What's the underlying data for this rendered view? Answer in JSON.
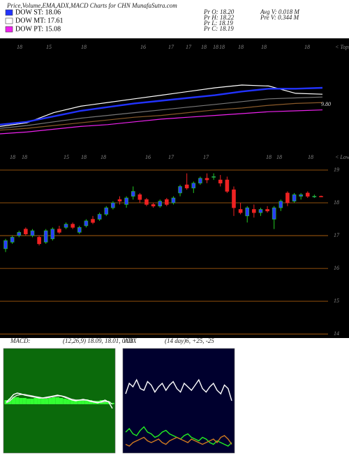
{
  "header": {
    "title": "Price,Volume,EMA,ADX,MACD Charts for CHN  MunafaSutra.com",
    "legend": [
      {
        "label": "DOW ST: 18.06",
        "color": "#2233ff"
      },
      {
        "label": "DOW MT: 17.61",
        "color": "#ffffff"
      },
      {
        "label": "DOW PT: 15.08",
        "color": "#ee22ee"
      }
    ],
    "stats": [
      "Pr  O: 18.20",
      "Pr  H: 18.22",
      "Pr  L: 18.19",
      "Pr  C: 18.19",
      "Avg V: 0.018  M",
      "Pre  V: 0.344  M"
    ]
  },
  "chart_data": [
    {
      "type": "line",
      "top_labels": [
        "18",
        "15",
        "18",
        "16",
        "17",
        "17",
        "18",
        "18",
        "18",
        "18",
        "18",
        "18"
      ],
      "end_label": "< Tops",
      "annotation": "9.80",
      "ylim": [
        0,
        10
      ],
      "series": [
        {
          "name": "magenta",
          "color": "#ee22ee",
          "values": [
            0.0,
            0.2,
            0.5,
            0.8,
            1.0,
            1.3,
            1.6,
            1.8,
            2.0,
            2.2,
            2.4,
            2.5,
            2.6
          ]
        },
        {
          "name": "brown",
          "color": "#8a5a2a",
          "values": [
            0.4,
            0.6,
            0.9,
            1.2,
            1.5,
            1.8,
            2.0,
            2.3,
            2.6,
            2.8,
            3.1,
            3.3,
            3.4
          ]
        },
        {
          "name": "gray",
          "color": "#777777",
          "values": [
            0.6,
            0.9,
            1.3,
            1.7,
            2.0,
            2.3,
            2.6,
            2.9,
            3.2,
            3.5,
            3.8,
            3.9,
            4.0
          ]
        },
        {
          "name": "white",
          "color": "#ffffff",
          "values": [
            0.8,
            1.2,
            2.3,
            3.0,
            3.4,
            3.8,
            4.2,
            4.6,
            5.0,
            5.3,
            5.2,
            4.4,
            4.3
          ]
        },
        {
          "name": "blue",
          "color": "#2233ff",
          "values": [
            1.0,
            1.3,
            1.9,
            2.5,
            2.9,
            3.3,
            3.6,
            3.9,
            4.2,
            4.6,
            4.9,
            4.9,
            5.0
          ]
        }
      ]
    },
    {
      "type": "candlestick",
      "top_labels": [
        "18",
        "18",
        "15",
        "18",
        "18",
        "16",
        "17",
        "17",
        "18",
        "18",
        "18"
      ],
      "end_label": "< Lows",
      "up_color": "#2a3cff",
      "up_edge": "#22cc22",
      "down_color": "#ee2222",
      "grid_color": "#c06a10",
      "grid": true,
      "ylim": [
        13.94,
        19.34
      ],
      "yticks": [
        14,
        15,
        16,
        17,
        18,
        19
      ],
      "open": [
        16.6,
        16.8,
        17.0,
        17.2,
        17.0,
        16.95,
        16.8,
        16.9,
        17.2,
        17.25,
        17.35,
        17.1,
        17.3,
        17.5,
        17.5,
        17.65,
        17.85,
        18.1,
        17.95,
        18.2,
        18.25,
        18.1,
        17.95,
        17.9,
        18.1,
        18.0,
        18.3,
        18.55,
        18.45,
        18.6,
        18.75,
        18.8,
        18.7,
        18.7,
        18.4,
        17.8,
        17.6,
        17.8,
        17.7,
        17.8,
        17.5,
        17.85,
        18.3,
        18.05,
        18.2,
        18.3,
        18.2,
        18.2
      ],
      "high": [
        16.9,
        17.0,
        17.15,
        17.25,
        17.2,
        17.0,
        17.2,
        17.25,
        17.3,
        17.4,
        17.4,
        17.3,
        17.5,
        17.6,
        17.7,
        17.9,
        18.05,
        18.2,
        18.2,
        18.5,
        18.3,
        18.15,
        18.0,
        18.1,
        18.15,
        18.2,
        18.55,
        18.9,
        18.65,
        18.8,
        18.9,
        18.9,
        18.85,
        18.8,
        18.5,
        18.0,
        17.9,
        17.95,
        17.85,
        17.9,
        17.9,
        18.1,
        18.35,
        18.3,
        18.3,
        18.35,
        18.25,
        18.22
      ],
      "low": [
        16.5,
        16.75,
        16.95,
        17.0,
        16.95,
        16.7,
        16.75,
        16.85,
        17.05,
        17.2,
        17.2,
        17.05,
        17.25,
        17.35,
        17.45,
        17.6,
        17.8,
        17.95,
        17.85,
        18.1,
        18.0,
        17.9,
        17.85,
        17.85,
        17.9,
        17.95,
        18.2,
        18.4,
        18.3,
        18.55,
        18.6,
        18.7,
        18.5,
        18.3,
        17.6,
        17.65,
        17.4,
        17.55,
        17.6,
        17.7,
        17.2,
        17.75,
        17.9,
        18.0,
        18.1,
        18.15,
        18.15,
        18.19
      ],
      "close": [
        16.85,
        16.95,
        17.1,
        17.05,
        17.15,
        16.75,
        17.15,
        17.2,
        17.1,
        17.35,
        17.25,
        17.25,
        17.45,
        17.4,
        17.65,
        17.85,
        18.0,
        18.05,
        18.15,
        18.35,
        18.1,
        17.95,
        17.9,
        18.05,
        17.95,
        18.15,
        18.5,
        18.45,
        18.6,
        18.75,
        18.7,
        18.8,
        18.6,
        18.35,
        17.85,
        17.7,
        17.85,
        17.7,
        17.8,
        17.75,
        17.85,
        18.05,
        18.0,
        18.25,
        18.25,
        18.2,
        18.2,
        18.19
      ]
    },
    {
      "type": "macd",
      "title": "MACD:",
      "subtitle": "(12,26,9) 18.09, 18.01, 0.08",
      "background": "#0b6a0b",
      "ylim": [
        -7,
        8
      ],
      "series": [
        {
          "name": "histogram",
          "color": "#33ff33",
          "values": [
            0.6,
            0.8,
            1.0,
            1.0,
            0.9,
            0.9,
            0.8,
            0.8,
            0.9,
            0.9,
            0.8,
            0.8,
            0.9,
            1.0,
            1.0,
            0.9,
            0.8,
            0.7,
            0.7,
            0.6,
            0.6,
            0.7,
            0.7,
            0.6,
            0.5,
            0.5,
            0.6,
            0.6,
            0.4,
            0.2
          ]
        },
        {
          "name": "signal",
          "color": "#dddddd",
          "values": [
            0.2,
            0.5,
            1.0,
            1.3,
            1.4,
            1.4,
            1.3,
            1.2,
            1.1,
            1.0,
            0.9,
            0.9,
            1.0,
            1.1,
            1.2,
            1.2,
            1.1,
            0.9,
            0.7,
            0.6,
            0.6,
            0.6,
            0.6,
            0.5,
            0.4,
            0.3,
            0.3,
            0.4,
            0.4,
            0.0
          ]
        },
        {
          "name": "macd",
          "color": "#ffffff",
          "values": [
            0.3,
            0.8,
            1.4,
            1.6,
            1.5,
            1.3,
            1.2,
            1.1,
            1.0,
            0.9,
            0.9,
            1.0,
            1.1,
            1.2,
            1.3,
            1.2,
            1.0,
            0.8,
            0.6,
            0.5,
            0.6,
            0.7,
            0.6,
            0.4,
            0.3,
            0.2,
            0.4,
            0.6,
            0.3,
            -0.6
          ]
        }
      ]
    },
    {
      "type": "adx",
      "title": "ADX",
      "subtitle": "(14 day)6, +25, -25",
      "background": "#00002e",
      "ylim": [
        0,
        60
      ],
      "series": [
        {
          "name": "adx",
          "color": "#ffffff",
          "values": [
            34,
            40,
            38,
            42,
            37,
            36,
            41,
            39,
            35,
            38,
            40,
            36,
            39,
            41,
            37,
            35,
            40,
            38,
            36,
            39,
            42,
            37,
            35,
            38,
            40,
            36,
            34,
            39,
            37,
            30
          ]
        },
        {
          "name": "plus",
          "color": "#22ee22",
          "values": [
            12,
            14,
            11,
            10,
            13,
            15,
            12,
            11,
            9,
            10,
            12,
            13,
            11,
            10,
            9,
            8,
            10,
            11,
            9,
            8,
            7,
            9,
            8,
            6,
            5,
            7,
            6,
            5,
            4,
            6
          ]
        },
        {
          "name": "minus",
          "color": "#d07a20",
          "values": [
            5,
            4,
            6,
            7,
            8,
            9,
            7,
            6,
            7,
            8,
            6,
            5,
            7,
            8,
            9,
            8,
            7,
            6,
            8,
            7,
            6,
            5,
            6,
            7,
            8,
            6,
            9,
            10,
            8,
            5
          ]
        }
      ]
    }
  ]
}
